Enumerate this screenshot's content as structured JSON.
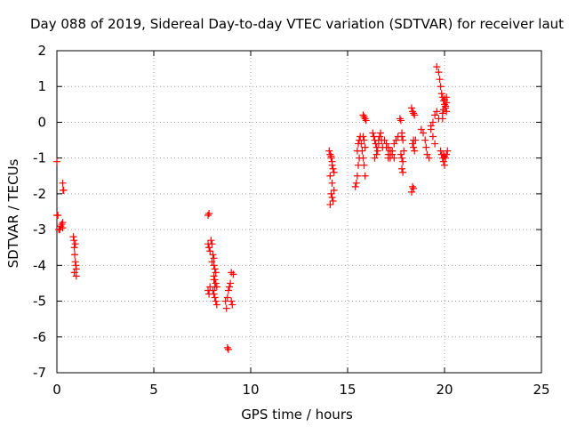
{
  "chart_data": {
    "type": "scatter",
    "title": "Day 088 of 2019, Sidereal Day-to-day VTEC variation (SDTVAR) for receiver laut",
    "xlabel": "GPS time / hours",
    "ylabel": "SDTVAR / TECUs",
    "xlim": [
      0,
      25
    ],
    "ylim": [
      -7,
      2
    ],
    "xticks": [
      0,
      5,
      10,
      15,
      20,
      25
    ],
    "yticks": [
      -7,
      -6,
      -5,
      -4,
      -3,
      -2,
      -1,
      0,
      1,
      2
    ],
    "grid": true,
    "marker": "plus",
    "color": "#ff0000",
    "series": [
      {
        "name": "SDTVAR",
        "x": [
          0.0,
          0.0,
          0.05,
          0.1,
          0.15,
          0.2,
          0.25,
          0.3,
          0.3,
          0.32,
          0.35,
          0.3,
          0.85,
          0.88,
          0.9,
          0.92,
          0.95,
          0.98,
          1.0,
          1.0,
          0.9,
          0.95,
          7.8,
          7.85,
          7.8,
          7.85,
          7.9,
          7.8,
          7.85,
          7.9,
          7.95,
          8.0,
          8.05,
          8.1,
          8.0,
          8.1,
          8.15,
          8.2,
          8.1,
          8.15,
          8.2,
          8.25,
          8.05,
          8.1,
          8.15,
          8.2,
          8.25,
          8.1,
          8.15,
          8.7,
          8.75,
          8.8,
          8.85,
          8.9,
          8.95,
          9.0,
          9.05,
          8.8,
          8.85,
          9.0,
          9.1,
          14.05,
          14.1,
          14.15,
          14.2,
          14.25,
          14.1,
          14.2,
          14.3,
          14.15,
          14.2,
          14.25,
          14.1,
          14.2,
          14.3,
          14.15,
          15.4,
          15.45,
          15.5,
          15.55,
          15.6,
          15.5,
          15.55,
          15.6,
          15.65,
          15.7,
          15.75,
          15.8,
          15.85,
          15.9,
          15.8,
          15.85,
          15.9,
          15.95,
          15.8,
          15.85,
          15.9,
          16.3,
          16.35,
          16.4,
          16.45,
          16.5,
          16.55,
          16.6,
          16.65,
          16.7,
          16.75,
          16.8,
          16.4,
          16.5,
          16.6,
          16.9,
          17.0,
          17.1,
          17.2,
          17.3,
          17.4,
          17.5,
          17.6,
          17.0,
          17.1,
          17.2,
          17.3,
          17.4,
          17.5,
          17.1,
          17.2,
          17.3,
          17.7,
          17.75,
          17.8,
          17.85,
          17.9,
          17.75,
          17.8,
          17.85,
          17.8,
          17.85,
          17.8,
          18.3,
          18.35,
          18.4,
          18.45,
          18.5,
          18.35,
          18.4,
          18.45,
          18.35,
          18.4,
          18.3,
          18.4,
          18.8,
          18.9,
          19.0,
          19.05,
          19.1,
          19.2,
          19.3,
          19.4,
          19.5,
          19.6,
          19.7,
          19.3,
          19.4,
          19.5,
          19.6,
          19.7,
          19.75,
          19.8,
          19.85,
          19.9,
          19.95,
          20.0,
          20.05,
          20.1,
          20.0,
          20.1,
          20.05,
          19.95,
          19.9,
          19.9,
          20.1,
          20.0,
          19.8,
          19.85,
          19.9,
          19.95,
          20.0,
          20.05,
          20.1,
          20.15,
          19.95,
          20.0
        ],
        "y": [
          -1.1,
          -2.6,
          -2.6,
          -3.0,
          -3.0,
          -2.9,
          -2.85,
          -2.8,
          -1.7,
          -1.9,
          -1.9,
          -2.95,
          -3.2,
          -3.3,
          -3.5,
          -3.7,
          -3.9,
          -4.0,
          -4.1,
          -4.3,
          -4.2,
          -3.4,
          -2.6,
          -2.55,
          -3.4,
          -3.5,
          -3.6,
          -4.7,
          -4.8,
          -4.6,
          -3.3,
          -3.4,
          -3.7,
          -3.8,
          -3.9,
          -4.0,
          -4.1,
          -4.2,
          -4.3,
          -4.4,
          -4.5,
          -4.6,
          -4.7,
          -4.8,
          -4.9,
          -5.0,
          -5.1,
          -4.4,
          -4.6,
          -5.0,
          -5.2,
          -4.9,
          -4.7,
          -4.6,
          -4.5,
          -5.0,
          -5.1,
          -6.3,
          -6.35,
          -4.2,
          -4.25,
          -0.8,
          -0.9,
          -1.0,
          -1.1,
          -1.3,
          -1.5,
          -1.7,
          -1.9,
          -2.0,
          -2.1,
          -2.2,
          -2.3,
          -1.2,
          -1.4,
          -0.95,
          -1.8,
          -1.7,
          -1.5,
          -1.2,
          -1.0,
          -0.8,
          -0.6,
          -0.5,
          -0.4,
          -0.6,
          -0.8,
          -1.0,
          -1.2,
          -1.5,
          0.2,
          0.15,
          0.1,
          0.05,
          -0.4,
          -0.5,
          -0.7,
          -0.3,
          -0.4,
          -0.5,
          -0.6,
          -0.7,
          -0.8,
          -0.5,
          -0.4,
          -0.3,
          -0.5,
          -0.7,
          -1.0,
          -0.9,
          -0.6,
          -0.5,
          -0.7,
          -0.9,
          -1.0,
          -0.8,
          -0.6,
          -0.5,
          -0.4,
          -0.6,
          -0.7,
          -0.8,
          -0.9,
          -1.0,
          -0.5,
          -1.0,
          -0.9,
          -0.8,
          0.1,
          0.05,
          -0.3,
          -0.5,
          -0.8,
          -0.9,
          -1.0,
          -1.1,
          -1.3,
          -1.4,
          -0.4,
          0.4,
          0.3,
          0.25,
          0.2,
          -0.5,
          -0.6,
          -0.7,
          -0.8,
          -1.8,
          -1.85,
          -1.95,
          -0.5,
          -0.2,
          -0.3,
          -0.5,
          -0.7,
          -0.9,
          -1.0,
          -0.1,
          0.0,
          0.2,
          0.3,
          0.1,
          -0.2,
          -0.4,
          -0.6,
          1.55,
          1.4,
          1.2,
          1.0,
          0.8,
          0.7,
          0.6,
          0.5,
          0.4,
          0.3,
          0.65,
          0.55,
          0.45,
          0.35,
          0.25,
          0.1,
          0.7,
          0.6,
          -0.8,
          -0.9,
          -1.0,
          -1.1,
          -1.2,
          -1.0,
          -0.9,
          -0.8,
          -0.9,
          -0.95
        ]
      }
    ]
  }
}
